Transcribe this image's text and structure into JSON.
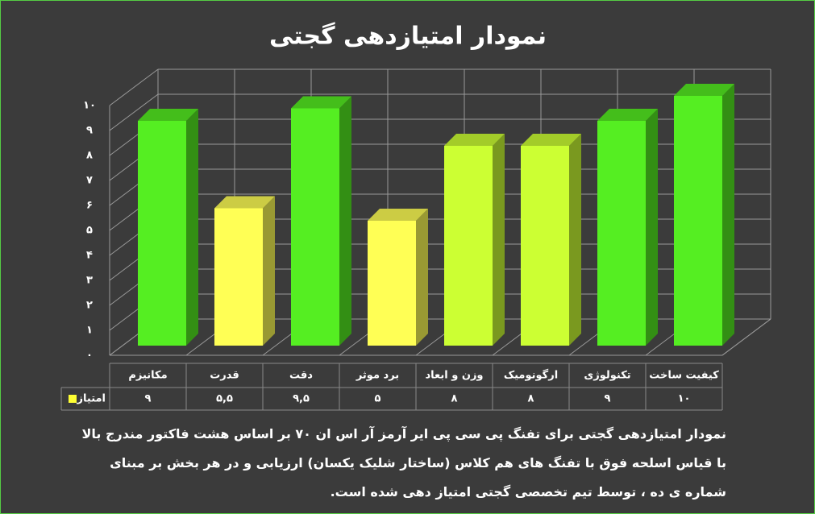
{
  "chart_data": {
    "type": "bar3d",
    "title": "نمودار امتیازدهی گجتی",
    "categories": [
      "مکانیزم",
      "قدرت",
      "دقت",
      "برد موثر",
      "وزن و ابعاد",
      "ارگونومیک",
      "تکنولوژی",
      "کیفیت ساخت"
    ],
    "series": [
      {
        "name": "امتیاز",
        "color": "#ffff33",
        "values": [
          9,
          5.5,
          9.5,
          5,
          8,
          8,
          9,
          10
        ],
        "value_labels": [
          "۹",
          "۵,۵",
          "۹,۵",
          "۵",
          "۸",
          "۸",
          "۹",
          "۱۰"
        ],
        "colors": [
          "#55ee22",
          "#ffff55",
          "#55ee22",
          "#ffff55",
          "#ccff33",
          "#ccff33",
          "#55ee22",
          "#55ee22"
        ]
      }
    ],
    "ylim": [
      0,
      10
    ],
    "yticks": [
      {
        "value": 0,
        "label": "۰"
      },
      {
        "value": 1,
        "label": "۱"
      },
      {
        "value": 2,
        "label": "۲"
      },
      {
        "value": 3,
        "label": "۳"
      },
      {
        "value": 4,
        "label": "۴"
      },
      {
        "value": 5,
        "label": "۵"
      },
      {
        "value": 6,
        "label": "۶"
      },
      {
        "value": 7,
        "label": "۷"
      },
      {
        "value": 8,
        "label": "۸"
      },
      {
        "value": 9,
        "label": "۹"
      },
      {
        "value": 10,
        "label": "۱۰"
      }
    ],
    "grid": true,
    "caption": "نمودار امتیازدهی گجتی برای تفنگ پی سی پی ایر آرمز آر اس ان ۷۰ بر اساس هشت فاکتور مندرج بالا با قیاس اسلحه فوق با تفنگ های هم کلاس (ساختار شلیک یکسان) ارزیابی و در هر بخش بر مبنای شماره ی ده ، توسط تیم تخصصی گجتی امتیاز دهی شده است."
  }
}
